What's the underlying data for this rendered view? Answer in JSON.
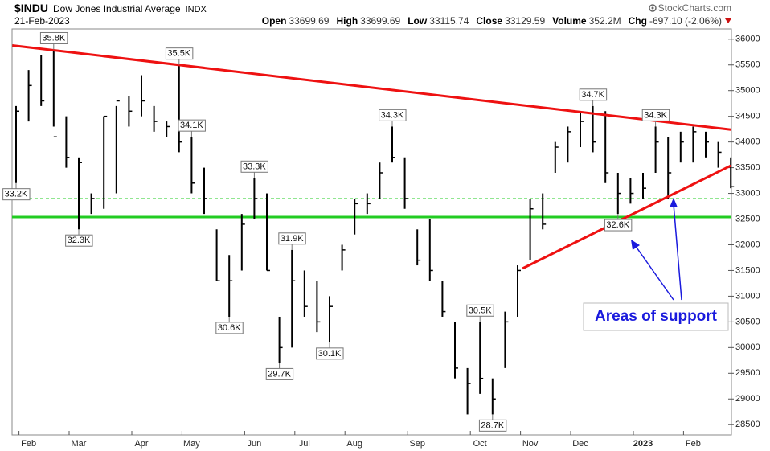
{
  "chart_data": {
    "type": "hlc",
    "symbol": "$INDU",
    "title": "Dow Jones Industrial Average",
    "exchange": "INDX",
    "date": "21-Feb-2023",
    "brand": "StockCharts.com",
    "quote": [
      {
        "label": "Open",
        "value": 33699.69
      },
      {
        "label": "High",
        "value": 33699.69
      },
      {
        "label": "Low",
        "value": 33115.74
      },
      {
        "label": "Close",
        "value": 33129.59
      },
      {
        "label": "Volume",
        "value": "352.2M"
      },
      {
        "label": "Chg",
        "value": "-697.10 (-2.06%)"
      }
    ],
    "annotation": "Areas of support",
    "categories": [
      null,
      "Feb",
      null,
      null,
      null,
      "Mar",
      null,
      null,
      null,
      null,
      "Apr",
      null,
      null,
      null,
      "May",
      null,
      null,
      null,
      null,
      "Jun",
      null,
      null,
      null,
      "Jul",
      null,
      null,
      null,
      "Aug",
      null,
      null,
      null,
      null,
      "Sep",
      null,
      null,
      null,
      null,
      "Oct",
      null,
      null,
      null,
      "Nov",
      null,
      null,
      null,
      "Dec",
      null,
      null,
      null,
      null,
      "2023",
      null,
      null,
      null,
      "Feb",
      null,
      null,
      null
    ],
    "high": [
      34700,
      35400,
      35700,
      35800,
      34500,
      33700,
      33000,
      34500,
      34700,
      34900,
      35300,
      34700,
      34400,
      35500,
      34100,
      33500,
      32300,
      31800,
      32600,
      33300,
      33000,
      30600,
      31900,
      31500,
      31300,
      31000,
      32000,
      32900,
      33000,
      33600,
      34300,
      33700,
      32300,
      32500,
      31300,
      30500,
      29600,
      30500,
      29400,
      30700,
      31600,
      32900,
      33000,
      34000,
      34300,
      34600,
      34700,
      34600,
      33400,
      33300,
      33400,
      34300,
      34100,
      34200,
      34300,
      34200,
      34000,
      33700
    ],
    "low": [
      33200,
      34400,
      34700,
      34300,
      33500,
      32300,
      32600,
      32700,
      33000,
      34300,
      34500,
      34200,
      34100,
      33800,
      33000,
      32600,
      31300,
      30600,
      31500,
      32500,
      31500,
      29700,
      30000,
      30600,
      30300,
      30100,
      31500,
      32200,
      32600,
      32900,
      33600,
      32700,
      31600,
      31300,
      30600,
      29400,
      28700,
      29100,
      28700,
      29600,
      30600,
      31700,
      32300,
      33400,
      33600,
      33900,
      33800,
      33200,
      32600,
      32800,
      32900,
      33400,
      32900,
      33600,
      33600,
      33700,
      33500,
      33100
    ],
    "close": [
      34600,
      35100,
      34800,
      34100,
      33700,
      33600,
      32900,
      34500,
      34800,
      34600,
      34800,
      34400,
      34300,
      34000,
      33200,
      32900,
      31300,
      31300,
      32400,
      32900,
      31500,
      30000,
      31300,
      30800,
      30500,
      30800,
      31900,
      32800,
      32800,
      33400,
      33700,
      32900,
      31700,
      31500,
      30700,
      29600,
      29300,
      29400,
      29000,
      30500,
      31500,
      32700,
      32400,
      33900,
      34200,
      34400,
      34000,
      33400,
      33000,
      33000,
      33100,
      34000,
      33400,
      34000,
      34200,
      34000,
      33800,
      33129.59
    ],
    "high_labels": [
      null,
      null,
      null,
      "35.8K",
      null,
      null,
      null,
      null,
      null,
      null,
      null,
      null,
      null,
      "35.5K",
      "34.1K",
      null,
      null,
      null,
      null,
      "33.3K",
      null,
      null,
      "31.9K",
      null,
      null,
      null,
      null,
      null,
      null,
      null,
      "34.3K",
      null,
      null,
      null,
      null,
      null,
      null,
      "30.5K",
      null,
      null,
      null,
      null,
      null,
      null,
      null,
      null,
      "34.7K",
      null,
      null,
      null,
      null,
      "34.3K",
      null,
      null,
      null,
      null,
      null,
      null
    ],
    "low_labels": [
      "33.2K",
      null,
      null,
      null,
      null,
      "32.3K",
      null,
      null,
      null,
      null,
      null,
      null,
      null,
      null,
      null,
      null,
      null,
      "30.6K",
      null,
      null,
      null,
      "29.7K",
      null,
      null,
      null,
      "30.1K",
      null,
      null,
      null,
      null,
      null,
      null,
      null,
      null,
      null,
      null,
      null,
      null,
      "28.7K",
      null,
      null,
      null,
      null,
      null,
      null,
      null,
      null,
      null,
      "32.6K",
      null,
      null,
      null,
      null,
      null,
      null,
      null,
      null,
      null
    ],
    "bar_color": "#000000",
    "reference_lines": [
      {
        "value": 32540,
        "color": "#22cc22",
        "dashed": false
      },
      {
        "value": 32900,
        "color": "#22cc22",
        "dashed": true
      }
    ],
    "trendlines": [
      {
        "x": [
          -0.3,
          57
        ],
        "values": [
          35880,
          34240
        ],
        "color": "#ee1111"
      },
      {
        "x": [
          40.4,
          57
        ],
        "values": [
          31540,
          33540
        ],
        "color": "#ee1111"
      }
    ],
    "ylim": [
      28300,
      36200
    ],
    "yticks": [
      28500,
      29000,
      29500,
      30000,
      30500,
      31000,
      31500,
      32000,
      32500,
      33000,
      33500,
      34000,
      34500,
      35000,
      35500,
      36000
    ]
  }
}
